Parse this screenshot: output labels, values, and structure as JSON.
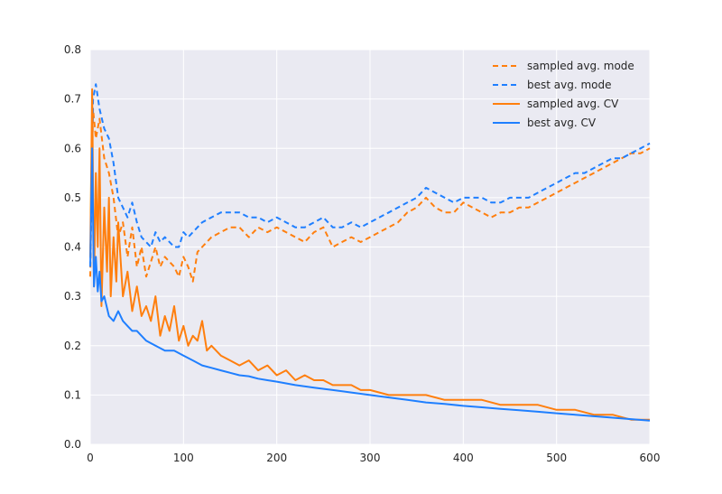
{
  "chart_data": {
    "type": "line",
    "title": "",
    "xlabel": "",
    "ylabel": "",
    "xlim": [
      0,
      600
    ],
    "ylim": [
      0.0,
      0.8
    ],
    "xticks": [
      0,
      100,
      200,
      300,
      400,
      500,
      600
    ],
    "xtick_labels": [
      "0",
      "100",
      "200",
      "300",
      "400",
      "500",
      "600"
    ],
    "yticks": [
      0.0,
      0.1,
      0.2,
      0.3,
      0.4,
      0.5,
      0.6,
      0.7,
      0.8
    ],
    "ytick_labels": [
      "0.0",
      "0.1",
      "0.2",
      "0.3",
      "0.4",
      "0.5",
      "0.6",
      "0.7",
      "0.8"
    ],
    "grid": true,
    "legend_position": "top-right",
    "colors": {
      "orange": "#FF7F0E",
      "blue": "#1F7FFF",
      "plot_bg": "#EAEAF2",
      "grid": "#FFFFFF"
    },
    "series": [
      {
        "name": "sampled avg. mode",
        "style": "dashed",
        "color": "#FF7F0E",
        "x": [
          0,
          3,
          6,
          10,
          15,
          20,
          25,
          30,
          35,
          40,
          45,
          50,
          55,
          60,
          65,
          70,
          75,
          80,
          85,
          90,
          95,
          100,
          105,
          110,
          115,
          120,
          130,
          140,
          150,
          160,
          170,
          180,
          190,
          200,
          210,
          220,
          230,
          240,
          250,
          260,
          270,
          280,
          290,
          300,
          310,
          320,
          330,
          340,
          350,
          360,
          370,
          380,
          390,
          400,
          410,
          420,
          430,
          440,
          450,
          460,
          470,
          480,
          490,
          500,
          510,
          520,
          530,
          540,
          550,
          560,
          570,
          580,
          590,
          600
        ],
        "y": [
          0.34,
          0.68,
          0.62,
          0.66,
          0.58,
          0.55,
          0.5,
          0.42,
          0.45,
          0.38,
          0.44,
          0.36,
          0.4,
          0.34,
          0.37,
          0.4,
          0.36,
          0.38,
          0.37,
          0.36,
          0.34,
          0.38,
          0.36,
          0.33,
          0.39,
          0.4,
          0.42,
          0.43,
          0.44,
          0.44,
          0.42,
          0.44,
          0.43,
          0.44,
          0.43,
          0.42,
          0.41,
          0.43,
          0.44,
          0.4,
          0.41,
          0.42,
          0.41,
          0.42,
          0.43,
          0.44,
          0.45,
          0.47,
          0.48,
          0.5,
          0.48,
          0.47,
          0.47,
          0.49,
          0.48,
          0.47,
          0.46,
          0.47,
          0.47,
          0.48,
          0.48,
          0.49,
          0.5,
          0.51,
          0.52,
          0.53,
          0.54,
          0.55,
          0.56,
          0.57,
          0.58,
          0.59,
          0.59,
          0.6
        ]
      },
      {
        "name": "best avg. mode",
        "style": "dashed",
        "color": "#1F7FFF",
        "x": [
          0,
          3,
          6,
          10,
          15,
          20,
          25,
          30,
          35,
          40,
          45,
          50,
          55,
          60,
          65,
          70,
          75,
          80,
          85,
          90,
          95,
          100,
          105,
          110,
          115,
          120,
          130,
          140,
          150,
          160,
          170,
          180,
          190,
          200,
          210,
          220,
          230,
          240,
          250,
          260,
          270,
          280,
          290,
          300,
          310,
          320,
          330,
          340,
          350,
          360,
          370,
          380,
          390,
          400,
          410,
          420,
          430,
          440,
          450,
          460,
          470,
          480,
          490,
          500,
          510,
          520,
          530,
          540,
          550,
          560,
          570,
          580,
          590,
          600
        ],
        "y": [
          0.36,
          0.7,
          0.73,
          0.68,
          0.64,
          0.62,
          0.57,
          0.5,
          0.48,
          0.46,
          0.49,
          0.45,
          0.42,
          0.41,
          0.4,
          0.43,
          0.41,
          0.42,
          0.41,
          0.4,
          0.4,
          0.43,
          0.42,
          0.43,
          0.44,
          0.45,
          0.46,
          0.47,
          0.47,
          0.47,
          0.46,
          0.46,
          0.45,
          0.46,
          0.45,
          0.44,
          0.44,
          0.45,
          0.46,
          0.44,
          0.44,
          0.45,
          0.44,
          0.45,
          0.46,
          0.47,
          0.48,
          0.49,
          0.5,
          0.52,
          0.51,
          0.5,
          0.49,
          0.5,
          0.5,
          0.5,
          0.49,
          0.49,
          0.5,
          0.5,
          0.5,
          0.51,
          0.52,
          0.53,
          0.54,
          0.55,
          0.55,
          0.56,
          0.57,
          0.58,
          0.58,
          0.59,
          0.6,
          0.61
        ]
      },
      {
        "name": "sampled avg. CV",
        "style": "solid",
        "color": "#FF7F0E",
        "x": [
          0,
          2,
          4,
          6,
          8,
          10,
          12,
          15,
          18,
          20,
          22,
          25,
          28,
          30,
          35,
          40,
          45,
          50,
          55,
          60,
          65,
          70,
          75,
          80,
          85,
          90,
          95,
          100,
          105,
          110,
          115,
          120,
          125,
          130,
          140,
          150,
          160,
          170,
          180,
          190,
          200,
          210,
          220,
          230,
          240,
          250,
          260,
          270,
          280,
          290,
          300,
          320,
          340,
          360,
          380,
          400,
          420,
          440,
          460,
          480,
          500,
          520,
          540,
          560,
          580,
          600
        ],
        "y": [
          0.38,
          0.72,
          0.32,
          0.55,
          0.4,
          0.6,
          0.28,
          0.48,
          0.35,
          0.5,
          0.3,
          0.42,
          0.33,
          0.45,
          0.3,
          0.35,
          0.27,
          0.32,
          0.26,
          0.28,
          0.25,
          0.3,
          0.22,
          0.26,
          0.23,
          0.28,
          0.21,
          0.24,
          0.2,
          0.22,
          0.21,
          0.25,
          0.19,
          0.2,
          0.18,
          0.17,
          0.16,
          0.17,
          0.15,
          0.16,
          0.14,
          0.15,
          0.13,
          0.14,
          0.13,
          0.13,
          0.12,
          0.12,
          0.12,
          0.11,
          0.11,
          0.1,
          0.1,
          0.1,
          0.09,
          0.09,
          0.09,
          0.08,
          0.08,
          0.08,
          0.07,
          0.07,
          0.06,
          0.06,
          0.05,
          0.05
        ]
      },
      {
        "name": "best avg. CV",
        "style": "solid",
        "color": "#1F7FFF",
        "x": [
          0,
          2,
          4,
          6,
          8,
          10,
          12,
          15,
          20,
          25,
          30,
          35,
          40,
          45,
          50,
          55,
          60,
          70,
          80,
          90,
          100,
          110,
          120,
          130,
          140,
          150,
          160,
          170,
          180,
          190,
          200,
          220,
          240,
          260,
          280,
          300,
          320,
          340,
          360,
          380,
          400,
          420,
          440,
          460,
          480,
          500,
          520,
          540,
          560,
          580,
          600
        ],
        "y": [
          0.36,
          0.6,
          0.32,
          0.38,
          0.31,
          0.35,
          0.29,
          0.3,
          0.26,
          0.25,
          0.27,
          0.25,
          0.24,
          0.23,
          0.23,
          0.22,
          0.21,
          0.2,
          0.19,
          0.19,
          0.18,
          0.17,
          0.16,
          0.155,
          0.15,
          0.145,
          0.14,
          0.138,
          0.133,
          0.13,
          0.127,
          0.12,
          0.115,
          0.11,
          0.105,
          0.1,
          0.095,
          0.09,
          0.085,
          0.082,
          0.078,
          0.075,
          0.072,
          0.069,
          0.066,
          0.063,
          0.06,
          0.057,
          0.054,
          0.051,
          0.048
        ]
      }
    ]
  }
}
